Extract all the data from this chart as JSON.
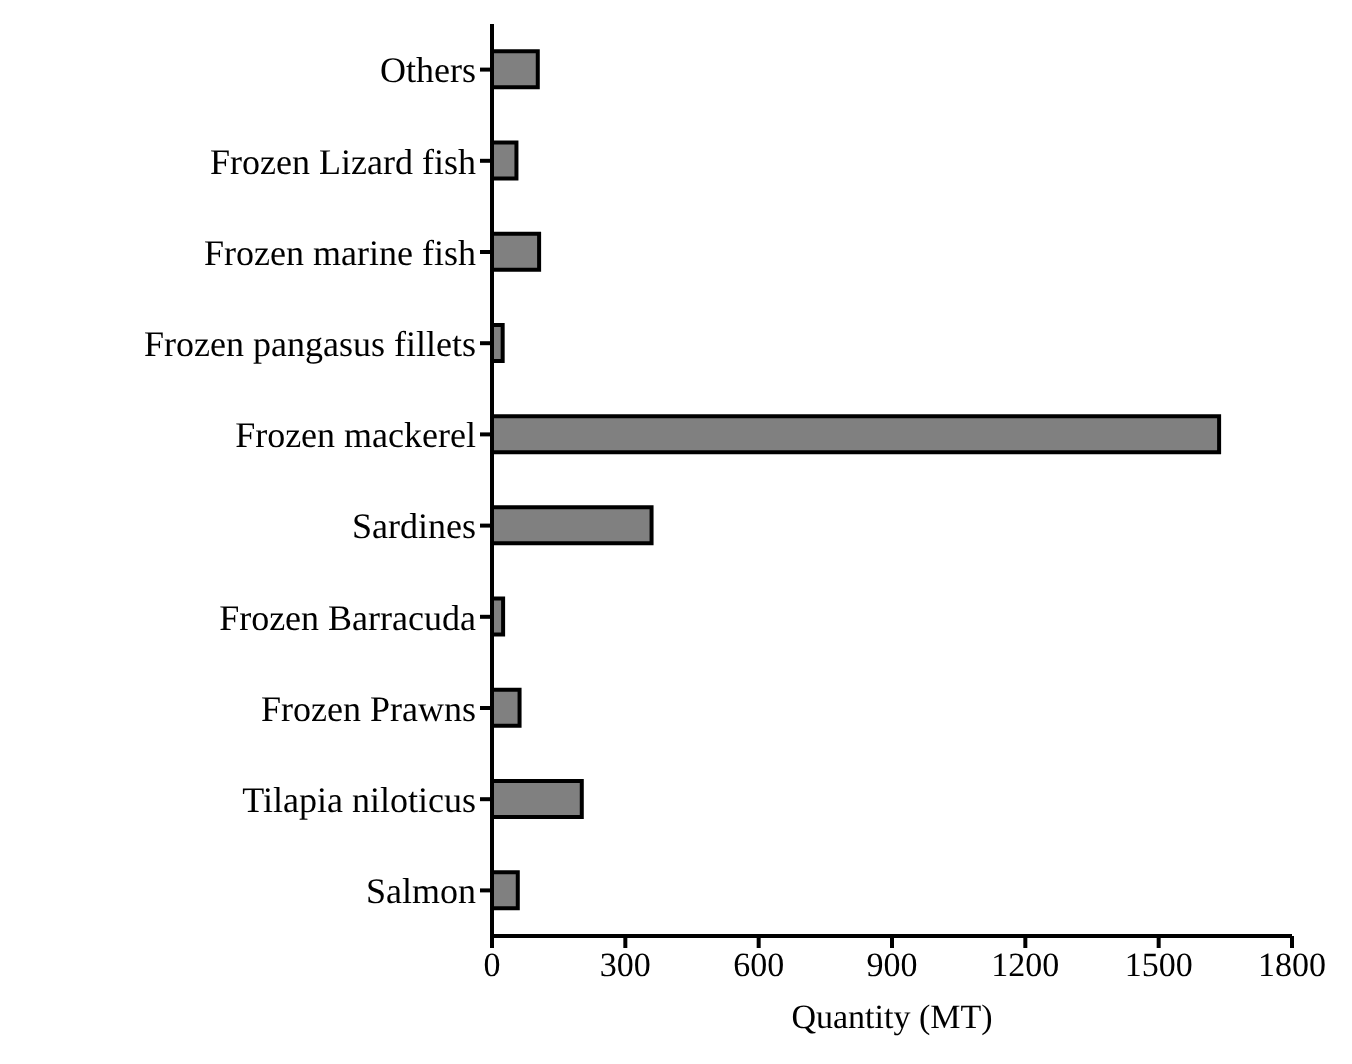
{
  "chart_data": {
    "type": "bar",
    "orientation": "horizontal",
    "xlabel": "Quantity (MT)",
    "categories": [
      "Others",
      "Frozen Lizard fish",
      "Frozen marine fish",
      "Frozen pangasus fillets",
      "Frozen mackerel",
      "Sardines",
      "Frozen Barracuda",
      "Frozen Prawns",
      "Tilapia niloticus",
      "Salmon"
    ],
    "values": [
      103,
      55,
      106,
      24,
      1636,
      359,
      25,
      62,
      202,
      58
    ],
    "color": "#808080",
    "xlim": [
      0,
      1800
    ],
    "xticks": [
      0,
      300,
      600,
      900,
      1200,
      1500,
      1800
    ],
    "grid": false
  }
}
